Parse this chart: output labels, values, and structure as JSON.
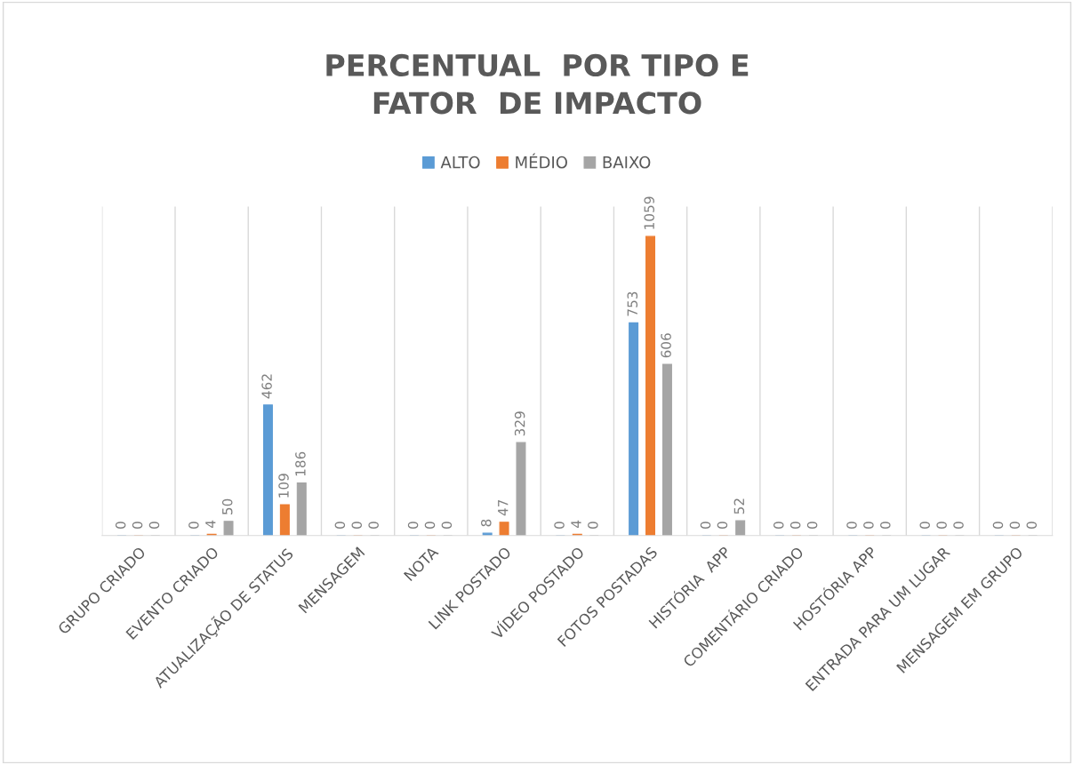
{
  "chart_data": {
    "type": "bar",
    "title": "PERCENTUAL  POR TIPO E\nFATOR  DE IMPACTO",
    "categories": [
      "GRUPO CRIADO",
      "EVENTO CRIADO",
      "ATUALIZAÇÃO DE STATUS",
      "MENSAGEM",
      "NOTA",
      "LINK POSTADO",
      "VÍDEO POSTADO",
      "FOTOS POSTADAS",
      "HISTÓRIA  APP",
      "COMENTÁRIO CRIADO",
      "HOSTÓRIA APP",
      "ENTRADA PARA UM LUGAR",
      "MENSAGEM EM GRUPO"
    ],
    "series": [
      {
        "name": "ALTO",
        "color": "#5b9bd5",
        "values": [
          0,
          0,
          462,
          0,
          0,
          8,
          0,
          753,
          0,
          0,
          0,
          0,
          0
        ]
      },
      {
        "name": "MÉDIO",
        "color": "#ed7d31",
        "values": [
          0,
          4,
          109,
          0,
          0,
          47,
          4,
          1059,
          0,
          0,
          0,
          0,
          0
        ]
      },
      {
        "name": "BAIXO",
        "color": "#a5a5a5",
        "values": [
          0,
          50,
          186,
          0,
          0,
          329,
          0,
          606,
          52,
          0,
          0,
          0,
          0
        ]
      }
    ],
    "data_labels": true,
    "grid": "x",
    "legend": "top",
    "tick_labels": "x"
  }
}
